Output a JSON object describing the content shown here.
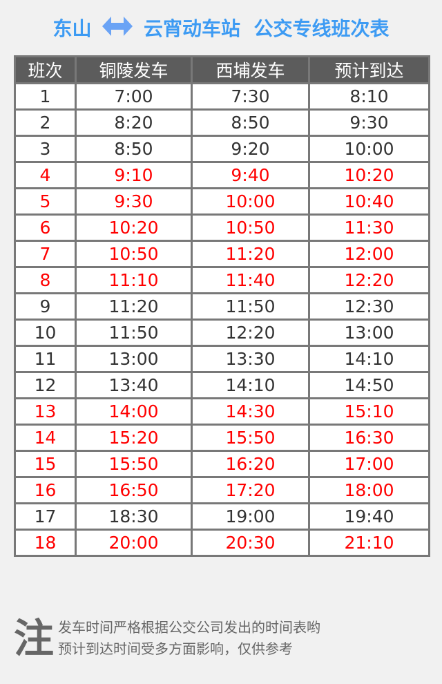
{
  "title": {
    "from": "东山",
    "to": "云宵动车站",
    "suffix": "公交专线班次表",
    "arrow_icon": "double-arrow",
    "color": "#3d9bf3"
  },
  "table": {
    "headers": [
      "班次",
      "铜陵发车",
      "西埔发车",
      "预计到达"
    ],
    "highlight_color": "#ff0000",
    "rows": [
      {
        "cells": [
          "1",
          "7:00",
          "7:30",
          "8:10"
        ],
        "highlight": false
      },
      {
        "cells": [
          "2",
          "8:20",
          "8:50",
          "9:30"
        ],
        "highlight": false
      },
      {
        "cells": [
          "3",
          "8:50",
          "9:20",
          "10:00"
        ],
        "highlight": false
      },
      {
        "cells": [
          "4",
          "9:10",
          "9:40",
          "10:20"
        ],
        "highlight": true
      },
      {
        "cells": [
          "5",
          "9:30",
          "10:00",
          "10:40"
        ],
        "highlight": true
      },
      {
        "cells": [
          "6",
          "10:20",
          "10:50",
          "11:30"
        ],
        "highlight": true
      },
      {
        "cells": [
          "7",
          "10:50",
          "11:20",
          "12:00"
        ],
        "highlight": true
      },
      {
        "cells": [
          "8",
          "11:10",
          "11:40",
          "12:20"
        ],
        "highlight": true
      },
      {
        "cells": [
          "9",
          "11:20",
          "11:50",
          "12:30"
        ],
        "highlight": false
      },
      {
        "cells": [
          "10",
          "11:50",
          "12:20",
          "13:00"
        ],
        "highlight": false
      },
      {
        "cells": [
          "11",
          "13:00",
          "13:30",
          "14:10"
        ],
        "highlight": false
      },
      {
        "cells": [
          "12",
          "13:40",
          "14:10",
          "14:50"
        ],
        "highlight": false
      },
      {
        "cells": [
          "13",
          "14:00",
          "14:30",
          "15:10"
        ],
        "highlight": true
      },
      {
        "cells": [
          "14",
          "15:20",
          "15:50",
          "16:30"
        ],
        "highlight": true
      },
      {
        "cells": [
          "15",
          "15:50",
          "16:20",
          "17:00"
        ],
        "highlight": true
      },
      {
        "cells": [
          "16",
          "16:50",
          "17:20",
          "18:00"
        ],
        "highlight": true
      },
      {
        "cells": [
          "17",
          "18:30",
          "19:00",
          "19:40"
        ],
        "highlight": false
      },
      {
        "cells": [
          "18",
          "20:00",
          "20:30",
          "21:10"
        ],
        "highlight": true
      }
    ]
  },
  "note": {
    "mark": "注",
    "lines": [
      "发车时间严格根据公交公司发出的时间表哟",
      "预计到达时间受多方面影响，仅供参考"
    ]
  }
}
